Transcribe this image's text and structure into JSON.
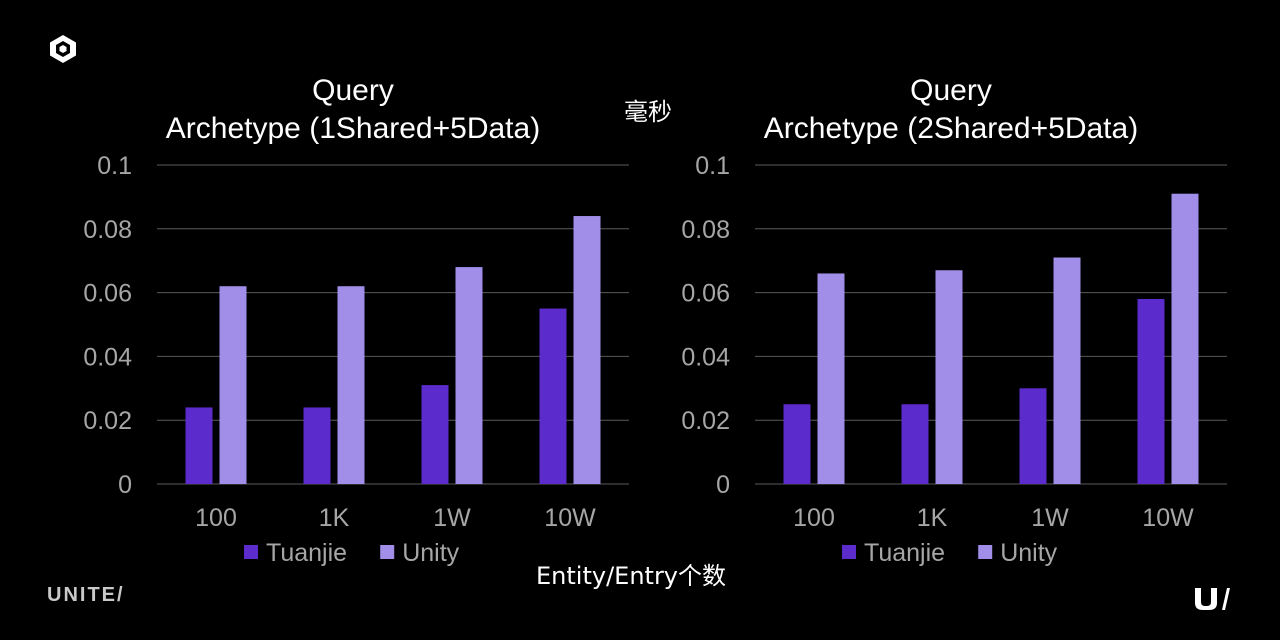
{
  "unit_label": "毫秒",
  "x_axis_label": "Entity/Entry个数",
  "brand_left": "UNITE/",
  "icons": {
    "top_left": "unity-cube-logo-icon",
    "bottom_right": "unite-u-logo-icon"
  },
  "colors": {
    "Tuanjie": "#5c2bcc",
    "Unity": "#a18ee9",
    "background": "#000000"
  },
  "chart_data": [
    {
      "type": "bar",
      "title": [
        "Query",
        "Archetype (1Shared+5Data)"
      ],
      "categories": [
        "100",
        "1K",
        "1W",
        "10W"
      ],
      "series": [
        {
          "name": "Tuanjie",
          "values": [
            0.024,
            0.024,
            0.031,
            0.055
          ]
        },
        {
          "name": "Unity",
          "values": [
            0.062,
            0.062,
            0.068,
            0.084
          ]
        }
      ],
      "ylim": [
        0,
        0.1
      ],
      "yticks": [
        "0",
        "0.02",
        "0.04",
        "0.06",
        "0.08",
        "0.1"
      ],
      "grid": true,
      "legend": "bottom"
    },
    {
      "type": "bar",
      "title": [
        "Query",
        "Archetype (2Shared+5Data)"
      ],
      "categories": [
        "100",
        "1K",
        "1W",
        "10W"
      ],
      "series": [
        {
          "name": "Tuanjie",
          "values": [
            0.025,
            0.025,
            0.03,
            0.058
          ]
        },
        {
          "name": "Unity",
          "values": [
            0.066,
            0.067,
            0.071,
            0.091
          ]
        }
      ],
      "ylim": [
        0,
        0.1
      ],
      "yticks": [
        "0",
        "0.02",
        "0.04",
        "0.06",
        "0.08",
        "0.1"
      ],
      "grid": true,
      "legend": "bottom"
    }
  ]
}
